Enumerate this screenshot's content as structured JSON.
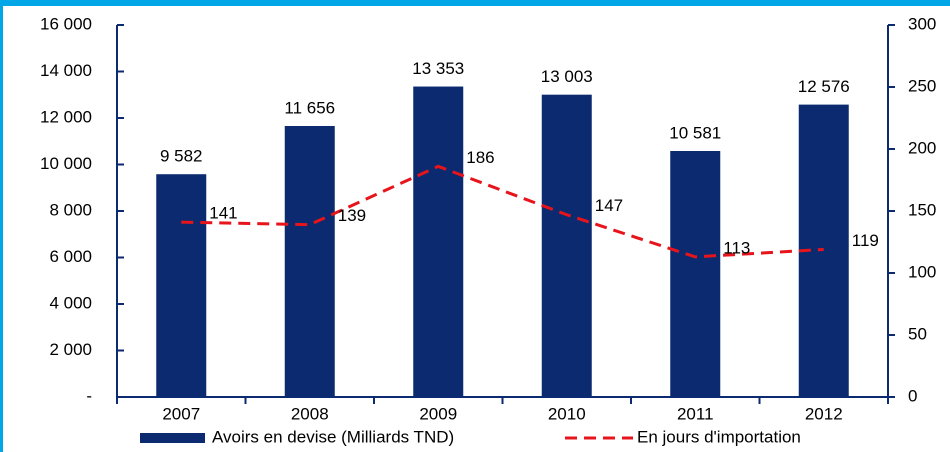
{
  "chart_data": {
    "type": "bar",
    "categories": [
      "2007",
      "2008",
      "2009",
      "2010",
      "2011",
      "2012"
    ],
    "series": [
      {
        "name": "Avoirs en devise (Milliards TND)",
        "type": "bar",
        "color": "#0b2a6f",
        "values": [
          9582,
          11656,
          13353,
          13003,
          10581,
          12576
        ],
        "value_labels": [
          "9 582",
          "11 656",
          "13 353",
          "13 003",
          "10 581",
          "12 576"
        ]
      },
      {
        "name": "En jours d'importation",
        "type": "line",
        "axis": "y2",
        "color": "#e8141b",
        "dashed": true,
        "values": [
          141,
          139,
          186,
          147,
          113,
          119
        ]
      }
    ],
    "ylim": [
      0,
      16000
    ],
    "yticks": [
      {
        "value": 0,
        "label": "-"
      },
      {
        "value": 2000,
        "label": "2 000"
      },
      {
        "value": 4000,
        "label": "4 000"
      },
      {
        "value": 6000,
        "label": "6 000"
      },
      {
        "value": 8000,
        "label": "8 000"
      },
      {
        "value": 10000,
        "label": "10 000"
      },
      {
        "value": 12000,
        "label": "12 000"
      },
      {
        "value": 14000,
        "label": "14 000"
      },
      {
        "value": 16000,
        "label": "16 000"
      }
    ],
    "y2lim": [
      0,
      300
    ],
    "y2ticks": [
      0,
      50,
      100,
      150,
      200,
      250,
      300
    ],
    "legend": "bottom"
  }
}
